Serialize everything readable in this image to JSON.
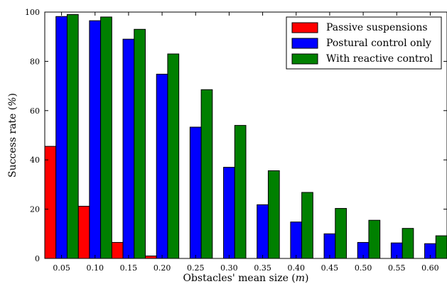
{
  "chart_data": {
    "type": "bar",
    "xlabel": "Obstacles' mean size (m)",
    "ylabel": "Success rate (%)",
    "ylim": [
      0,
      100
    ],
    "yticks": [
      0,
      20,
      40,
      60,
      80,
      100
    ],
    "categories": [
      "0.05",
      "0.10",
      "0.15",
      "0.20",
      "0.25",
      "0.30",
      "0.35",
      "0.40",
      "0.45",
      "0.50",
      "0.55",
      "0.60"
    ],
    "series": [
      {
        "name": "Passive suspensions",
        "color": "#ff0000",
        "values": [
          45.5,
          21.2,
          6.5,
          1.0,
          0,
          0,
          0,
          0,
          0,
          0,
          0,
          0
        ]
      },
      {
        "name": "Postural control only",
        "color": "#0000ff",
        "values": [
          98.2,
          96.5,
          89.0,
          74.8,
          53.3,
          37.0,
          21.8,
          14.8,
          10.0,
          6.5,
          6.3,
          6.0
        ]
      },
      {
        "name": "With reactive control",
        "color": "#008000",
        "values": [
          99.0,
          98.0,
          93.0,
          83.0,
          68.5,
          54.0,
          35.6,
          26.8,
          20.3,
          15.5,
          12.2,
          9.2
        ]
      }
    ],
    "legend_position": "top-right",
    "grid": false
  }
}
